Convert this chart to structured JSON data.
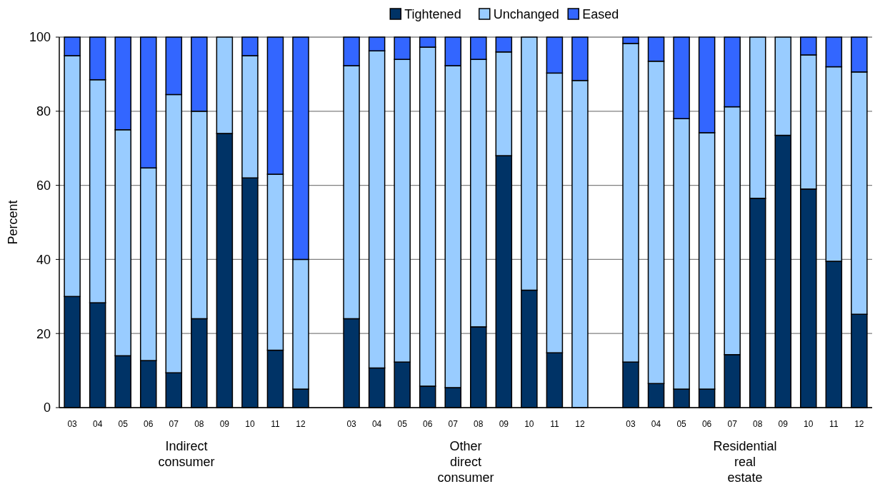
{
  "chart_data": {
    "type": "bar",
    "stacked": true,
    "ylabel": "Percent",
    "ylim": [
      0,
      100
    ],
    "yticks": [
      0,
      20,
      40,
      60,
      80,
      100
    ],
    "grid": "y",
    "legend": "top",
    "categories": [
      "03",
      "04",
      "05",
      "06",
      "07",
      "08",
      "09",
      "10",
      "11",
      "12",
      null,
      "03",
      "04",
      "05",
      "06",
      "07",
      "08",
      "09",
      "10",
      "11",
      "12",
      null,
      "03",
      "04",
      "05",
      "06",
      "07",
      "08",
      "09",
      "10",
      "11",
      "12"
    ],
    "series": [
      {
        "name": "Tightened",
        "color": "#003366",
        "values": [
          30,
          28.3,
          14,
          12.7,
          9.4,
          24,
          74,
          62,
          15.5,
          5,
          null,
          24,
          10.7,
          12.3,
          5.8,
          5.4,
          21.8,
          68,
          31.7,
          14.8,
          0,
          null,
          12.3,
          6.5,
          5,
          5,
          14.3,
          56.5,
          73.5,
          59,
          39.5,
          25.2
        ]
      },
      {
        "name": "Unchanged",
        "color": "#99ccff",
        "values": [
          65,
          60.2,
          61,
          52,
          75.1,
          56,
          26,
          33,
          47.5,
          35,
          null,
          68.3,
          85.6,
          81.7,
          91.5,
          86.9,
          72.2,
          28,
          68.3,
          75.5,
          88.3,
          null,
          86,
          87,
          73,
          69.2,
          66.9,
          43.5,
          26.5,
          36.2,
          52.5,
          65.4
        ]
      },
      {
        "name": "Eased",
        "color": "#3366ff",
        "values": [
          5,
          11.5,
          25,
          35.3,
          15.5,
          20,
          0,
          5,
          37,
          60,
          null,
          7.7,
          3.7,
          6,
          2.7,
          7.7,
          6,
          4,
          0,
          9.7,
          11.7,
          null,
          1.7,
          6.5,
          22,
          25.8,
          18.8,
          0,
          0,
          4.8,
          8,
          9.4
        ]
      }
    ],
    "annotations": [
      "Indirect consumer",
      "Other direct consumer",
      "Residential real estate"
    ]
  }
}
